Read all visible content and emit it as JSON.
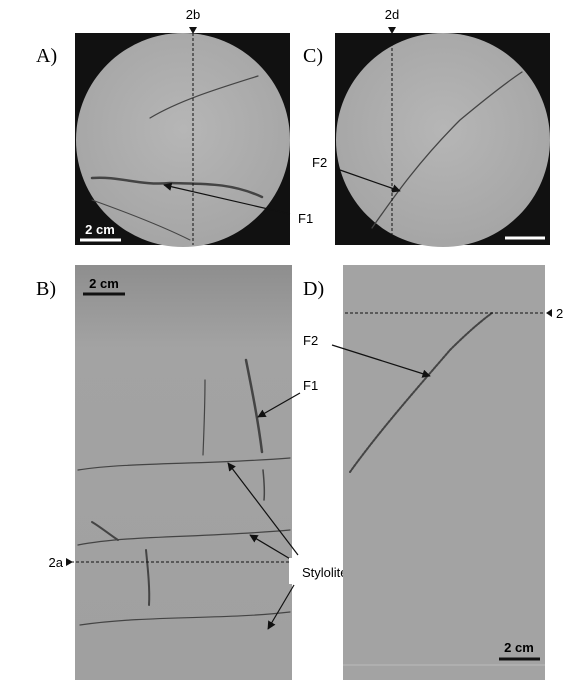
{
  "panels": [
    {
      "label": "A)",
      "marker": "2b",
      "scale_bar": "2 cm",
      "callouts": [
        "F1"
      ]
    },
    {
      "label": "B)",
      "marker": "2a",
      "scale_bar": "2 cm",
      "callouts": [
        "F1",
        "Stylolites"
      ]
    },
    {
      "label": "C)",
      "marker": "2d",
      "callouts": [
        "F2"
      ]
    },
    {
      "label": "D)",
      "marker": "2",
      "scale_bar": "2 cm",
      "callouts": [
        "F2"
      ]
    }
  ]
}
